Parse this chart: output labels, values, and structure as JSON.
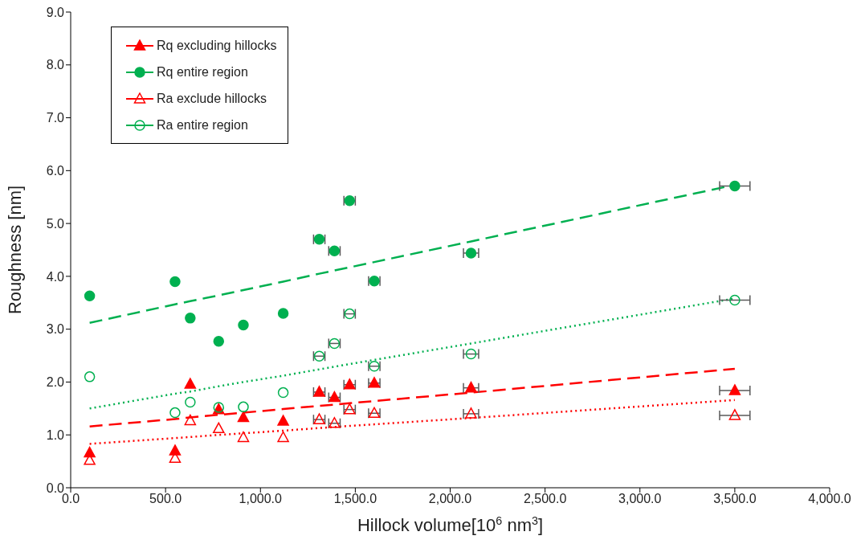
{
  "chart_data": {
    "type": "scatter",
    "xlabel": "Hillock volume[10$^{6}$ nm$^{3}$]",
    "ylabel": "Roughness [nm]",
    "xlim": [
      0,
      4000
    ],
    "xticks": [
      {
        "value": 0,
        "label": "0.0"
      },
      {
        "value": 500,
        "label": "500.0"
      },
      {
        "value": 1000,
        "label": "1,000.0"
      },
      {
        "value": 1500,
        "label": "1,500.0"
      },
      {
        "value": 2000,
        "label": "2,000.0"
      },
      {
        "value": 2500,
        "label": "2,500.0"
      },
      {
        "value": 3000,
        "label": "3,000.0"
      },
      {
        "value": 3500,
        "label": "3,500.0"
      },
      {
        "value": 4000,
        "label": "4,000.0"
      }
    ],
    "ylim": [
      0,
      9
    ],
    "yticks": [
      {
        "value": 0,
        "label": "0.0"
      },
      {
        "value": 1,
        "label": "1.0"
      },
      {
        "value": 2,
        "label": "2.0"
      },
      {
        "value": 3,
        "label": "3.0"
      },
      {
        "value": 4,
        "label": "4.0"
      },
      {
        "value": 5,
        "label": "5.0"
      },
      {
        "value": 6,
        "label": "6.0"
      },
      {
        "value": 7,
        "label": "7.0"
      },
      {
        "value": 8,
        "label": "8.0"
      },
      {
        "value": 9,
        "label": "9.0"
      }
    ],
    "legend": "top left",
    "x": [
      100,
      550,
      630,
      780,
      910,
      1120,
      1310,
      1390,
      1470,
      1600,
      2110,
      3500
    ],
    "series": [
      {
        "name": "Rq excluding hillocks",
        "color": "#ff0000",
        "marker": "triangle",
        "values": [
          0.66,
          0.7,
          1.96,
          1.48,
          1.33,
          1.26,
          1.81,
          1.71,
          1.95,
          1.98,
          1.89,
          1.84
        ],
        "xerrors": [
          null,
          null,
          null,
          null,
          null,
          null,
          30,
          30,
          30,
          30,
          40,
          80
        ]
      },
      {
        "name": "Rq entire region",
        "color": "#00b050",
        "marker": "circle",
        "values": [
          3.63,
          3.9,
          3.21,
          2.77,
          3.08,
          3.3,
          4.7,
          4.48,
          5.43,
          3.91,
          4.44,
          5.71
        ],
        "xerrors": [
          null,
          null,
          null,
          null,
          null,
          null,
          30,
          30,
          30,
          30,
          40,
          80
        ]
      },
      {
        "name": "Ra exclude hillocks",
        "color": "#ff0000",
        "marker": "triangle",
        "values": [
          0.52,
          0.56,
          1.27,
          1.12,
          0.95,
          0.95,
          1.29,
          1.22,
          1.48,
          1.41,
          1.4,
          1.37
        ],
        "xerrors": [
          null,
          null,
          null,
          null,
          null,
          null,
          30,
          30,
          30,
          30,
          40,
          80
        ]
      },
      {
        "name": "Ra entire region",
        "color": "#00b050",
        "marker": "circle",
        "values": [
          2.1,
          1.42,
          1.62,
          1.52,
          1.53,
          1.8,
          2.49,
          2.73,
          3.29,
          2.3,
          2.53,
          3.55
        ],
        "xerrors": [
          null,
          null,
          null,
          null,
          null,
          null,
          30,
          30,
          30,
          30,
          40,
          80
        ]
      },
      {
        "type": "line",
        "color": "#00b050",
        "line_style": "dashed",
        "marker": "none",
        "values": [
          3.12,
          3.47,
          3.53,
          3.64,
          3.74,
          3.9,
          4.05,
          4.11,
          4.17,
          4.27,
          4.66,
          5.73
        ]
      },
      {
        "type": "line",
        "color": "#00b050",
        "line_style": "dotted",
        "marker": "none",
        "values": [
          1.5,
          1.78,
          1.82,
          1.92,
          2.0,
          2.12,
          2.24,
          2.29,
          2.34,
          2.42,
          2.73,
          3.58
        ]
      },
      {
        "type": "line",
        "color": "#ff0000",
        "line_style": "dashed",
        "marker": "none",
        "values": [
          1.16,
          1.3,
          1.33,
          1.38,
          1.42,
          1.49,
          1.55,
          1.57,
          1.6,
          1.64,
          1.8,
          2.25
        ]
      },
      {
        "type": "line",
        "color": "#ff0000",
        "line_style": "dotted",
        "marker": "none",
        "values": [
          0.83,
          0.94,
          0.96,
          1.0,
          1.03,
          1.08,
          1.13,
          1.15,
          1.17,
          1.2,
          1.32,
          1.66
        ]
      }
    ]
  }
}
